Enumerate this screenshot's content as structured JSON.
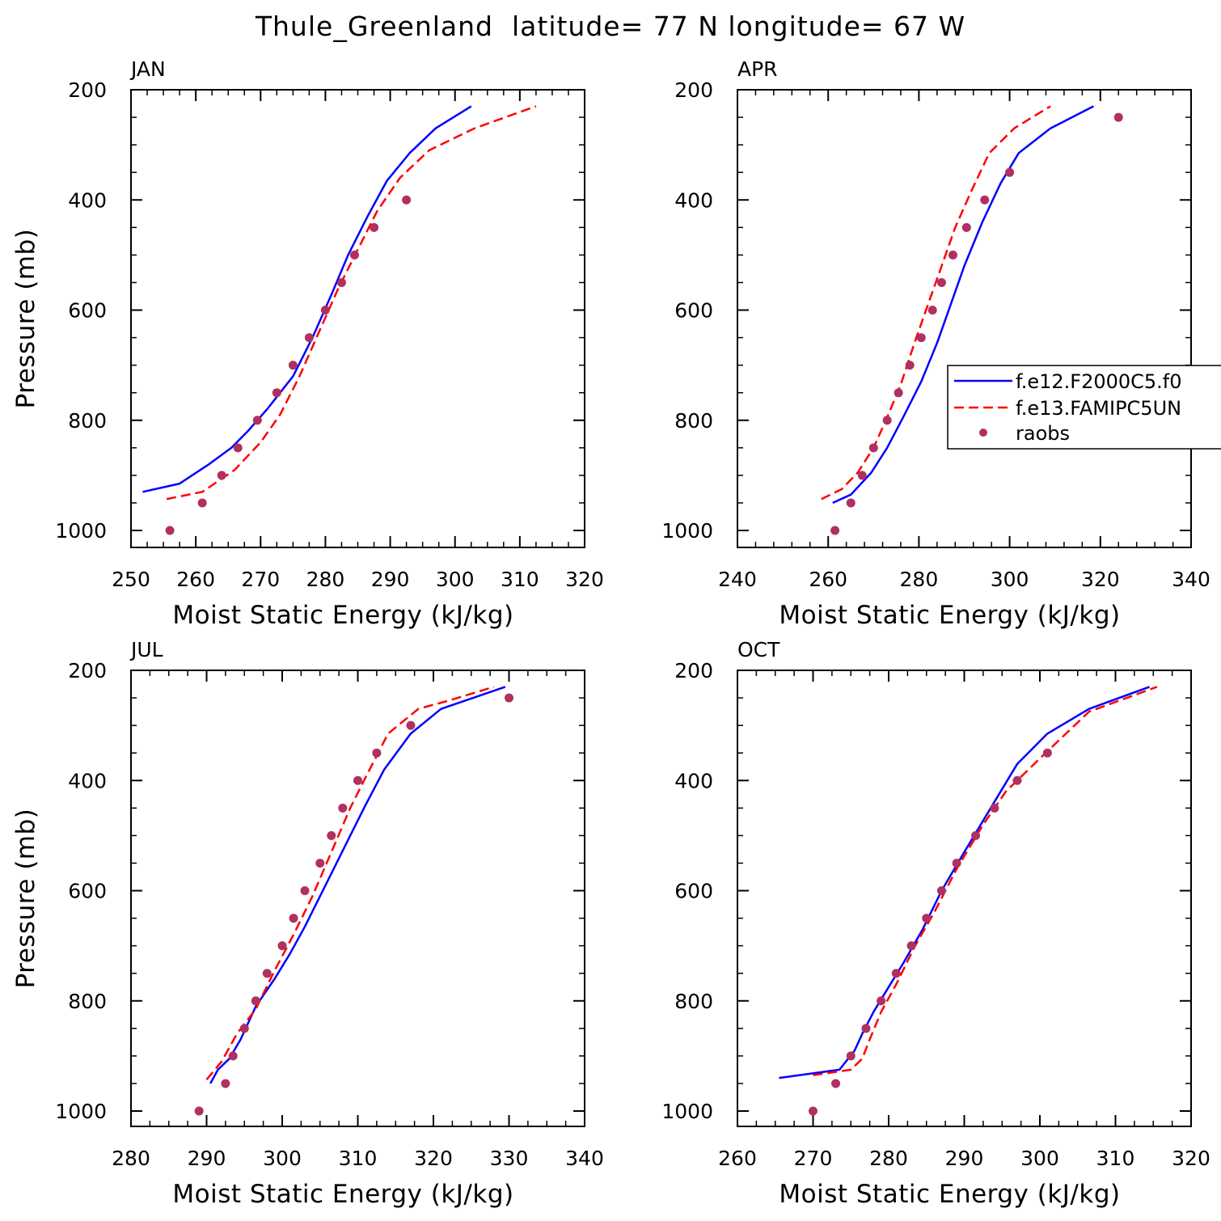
{
  "title": "Thule_Greenland  latitude= 77 N longitude= 67 W",
  "colors": {
    "model1": "#0000ff",
    "model2": "#ff0000",
    "raobs": "#b03060",
    "axis": "#000000"
  },
  "legend": {
    "entries": [
      {
        "label": "f.e12.F2000C5.f0",
        "style": "solid",
        "color": "#0000ff"
      },
      {
        "label": "f.e13.FAMIPC5UN",
        "style": "dashed",
        "color": "#ff0000"
      },
      {
        "label": "raobs",
        "style": "dot",
        "color": "#b03060"
      }
    ]
  },
  "chart_data": [
    {
      "type": "line",
      "panel": "JAN",
      "xlabel": "Moist Static Energy (kJ/kg)",
      "ylabel": "Pressure (mb)",
      "xlim": [
        250,
        320
      ],
      "ylim": [
        1000,
        200
      ],
      "xticks": [
        "250",
        "260",
        "270",
        "280",
        "290",
        "300",
        "310",
        "320"
      ],
      "yticks": [
        "200",
        "400",
        "600",
        "800",
        "1000"
      ],
      "series": [
        {
          "name": "f.e12.F2000C5.f0",
          "style": "solid",
          "points": [
            [
              251.8,
              930
            ],
            [
              257.5,
              915
            ],
            [
              262,
              880
            ],
            [
              265.5,
              850
            ],
            [
              268,
              820
            ],
            [
              271,
              780
            ],
            [
              275,
              720
            ],
            [
              278,
              650
            ],
            [
              281,
              570
            ],
            [
              283.5,
              500
            ],
            [
              286.5,
              430
            ],
            [
              289.5,
              365
            ],
            [
              293,
              315
            ],
            [
              297,
              270
            ],
            [
              302.5,
              230
            ]
          ]
        },
        {
          "name": "f.e13.FAMIPC5UN",
          "style": "dashed",
          "points": [
            [
              255.5,
              943
            ],
            [
              261,
              930
            ],
            [
              266,
              890
            ],
            [
              270,
              840
            ],
            [
              273,
              790
            ],
            [
              276,
              720
            ],
            [
              279,
              640
            ],
            [
              282,
              560
            ],
            [
              285,
              490
            ],
            [
              288,
              420
            ],
            [
              291.5,
              360
            ],
            [
              296,
              310
            ],
            [
              303,
              270
            ],
            [
              312.5,
              230
            ]
          ]
        },
        {
          "name": "raobs",
          "style": "dot",
          "points": [
            [
              256,
              1000
            ],
            [
              261,
              950
            ],
            [
              264,
              900
            ],
            [
              266.5,
              850
            ],
            [
              269.5,
              800
            ],
            [
              272.5,
              750
            ],
            [
              275,
              700
            ],
            [
              277.5,
              650
            ],
            [
              280,
              600
            ],
            [
              282.5,
              550
            ],
            [
              284.5,
              500
            ],
            [
              287.5,
              450
            ],
            [
              292.5,
              400
            ]
          ]
        }
      ]
    },
    {
      "type": "line",
      "panel": "APR",
      "xlabel": "Moist Static Energy (kJ/kg)",
      "ylabel": "",
      "xlim": [
        240,
        340
      ],
      "ylim": [
        1000,
        200
      ],
      "xticks": [
        "240",
        "260",
        "280",
        "300",
        "320",
        "340"
      ],
      "yticks": [
        "200",
        "400",
        "600",
        "800",
        "1000"
      ],
      "series": [
        {
          "name": "f.e12.F2000C5.f0",
          "style": "solid",
          "points": [
            [
              261,
              950
            ],
            [
              265,
              935
            ],
            [
              269.5,
              895
            ],
            [
              273,
              850
            ],
            [
              276.5,
              795
            ],
            [
              280.5,
              730
            ],
            [
              284,
              660
            ],
            [
              287,
              590
            ],
            [
              290,
              520
            ],
            [
              294,
              440
            ],
            [
              298,
              370
            ],
            [
              302,
              315
            ],
            [
              309,
              270
            ],
            [
              318.5,
              230
            ]
          ]
        },
        {
          "name": "f.e13.FAMIPC5UN",
          "style": "dashed",
          "points": [
            [
              258.5,
              943
            ],
            [
              263,
              925
            ],
            [
              266.5,
              895
            ],
            [
              270,
              850
            ],
            [
              273,
              795
            ],
            [
              276,
              735
            ],
            [
              279,
              660
            ],
            [
              282,
              590
            ],
            [
              285,
              520
            ],
            [
              288,
              450
            ],
            [
              291.5,
              385
            ],
            [
              295.5,
              315
            ],
            [
              301,
              270
            ],
            [
              309,
              230
            ]
          ]
        },
        {
          "name": "raobs",
          "style": "dot",
          "points": [
            [
              261.5,
              1000
            ],
            [
              265,
              950
            ],
            [
              267.5,
              900
            ],
            [
              270,
              850
            ],
            [
              273,
              800
            ],
            [
              275.5,
              750
            ],
            [
              278,
              700
            ],
            [
              280.5,
              650
            ],
            [
              283,
              600
            ],
            [
              285,
              550
            ],
            [
              287.5,
              500
            ],
            [
              290.5,
              450
            ],
            [
              294.5,
              400
            ],
            [
              300,
              350
            ],
            [
              324,
              250
            ]
          ]
        }
      ]
    },
    {
      "type": "line",
      "panel": "JUL",
      "xlabel": "Moist Static Energy (kJ/kg)",
      "ylabel": "Pressure (mb)",
      "xlim": [
        280,
        340
      ],
      "ylim": [
        1000,
        200
      ],
      "xticks": [
        "280",
        "290",
        "300",
        "310",
        "320",
        "330",
        "340"
      ],
      "yticks": [
        "200",
        "400",
        "600",
        "800",
        "1000"
      ],
      "series": [
        {
          "name": "f.e12.F2000C5.f0",
          "style": "solid",
          "points": [
            [
              290.5,
              950
            ],
            [
              291.5,
              925
            ],
            [
              293,
              905
            ],
            [
              294.5,
              870
            ],
            [
              296.5,
              810
            ],
            [
              299,
              760
            ],
            [
              301,
              715
            ],
            [
              303,
              665
            ],
            [
              305,
              610
            ],
            [
              307,
              555
            ],
            [
              309,
              500
            ],
            [
              311,
              445
            ],
            [
              313.5,
              380
            ],
            [
              317,
              315
            ],
            [
              321,
              270
            ],
            [
              329.5,
              230
            ]
          ]
        },
        {
          "name": "f.e13.FAMIPC5UN",
          "style": "dashed",
          "points": [
            [
              290,
              943
            ],
            [
              292,
              910
            ],
            [
              294,
              860
            ],
            [
              296.5,
              815
            ],
            [
              299,
              745
            ],
            [
              301.5,
              680
            ],
            [
              304,
              610
            ],
            [
              306.5,
              530
            ],
            [
              309,
              450
            ],
            [
              311,
              395
            ],
            [
              314,
              315
            ],
            [
              318,
              270
            ],
            [
              322,
              255
            ],
            [
              328,
              230
            ]
          ]
        },
        {
          "name": "raobs",
          "style": "dot",
          "points": [
            [
              289,
              1000
            ],
            [
              292.5,
              950
            ],
            [
              293.5,
              900
            ],
            [
              295,
              850
            ],
            [
              296.5,
              800
            ],
            [
              298,
              750
            ],
            [
              300,
              700
            ],
            [
              301.5,
              650
            ],
            [
              303,
              600
            ],
            [
              305,
              550
            ],
            [
              306.5,
              500
            ],
            [
              308,
              450
            ],
            [
              310,
              400
            ],
            [
              312.5,
              350
            ],
            [
              317,
              300
            ],
            [
              330,
              250
            ]
          ]
        }
      ]
    },
    {
      "type": "line",
      "panel": "OCT",
      "xlabel": "Moist Static Energy (kJ/kg)",
      "ylabel": "",
      "xlim": [
        260,
        320
      ],
      "ylim": [
        1000,
        200
      ],
      "xticks": [
        "260",
        "270",
        "280",
        "290",
        "300",
        "310",
        "320"
      ],
      "yticks": [
        "200",
        "400",
        "600",
        "800",
        "1000"
      ],
      "series": [
        {
          "name": "f.e12.F2000C5.f0",
          "style": "solid",
          "points": [
            [
              265.5,
              940
            ],
            [
              273.5,
              925
            ],
            [
              275.5,
              890
            ],
            [
              276.5,
              860
            ],
            [
              278,
              820
            ],
            [
              280,
              775
            ],
            [
              282,
              730
            ],
            [
              284.5,
              670
            ],
            [
              287,
              600
            ],
            [
              290,
              530
            ],
            [
              293.5,
              450
            ],
            [
              297,
              370
            ],
            [
              301,
              315
            ],
            [
              306.5,
              270
            ],
            [
              314.5,
              230
            ]
          ]
        },
        {
          "name": "f.e13.FAMIPC5UN",
          "style": "dashed",
          "points": [
            [
              270,
              935
            ],
            [
              275,
              925
            ],
            [
              276.5,
              905
            ],
            [
              277.5,
              870
            ],
            [
              279,
              820
            ],
            [
              281,
              770
            ],
            [
              283.5,
              700
            ],
            [
              286,
              640
            ],
            [
              289,
              560
            ],
            [
              292.5,
              480
            ],
            [
              295.5,
              420
            ],
            [
              300,
              360
            ],
            [
              306.5,
              275
            ],
            [
              315.5,
              230
            ]
          ]
        },
        {
          "name": "raobs",
          "style": "dot",
          "points": [
            [
              270,
              1000
            ],
            [
              273,
              950
            ],
            [
              275,
              900
            ],
            [
              277,
              850
            ],
            [
              279,
              800
            ],
            [
              281,
              750
            ],
            [
              283,
              700
            ],
            [
              285,
              650
            ],
            [
              287,
              600
            ],
            [
              289,
              550
            ],
            [
              291.5,
              500
            ],
            [
              294,
              450
            ],
            [
              297,
              400
            ],
            [
              301,
              350
            ]
          ]
        }
      ]
    }
  ]
}
